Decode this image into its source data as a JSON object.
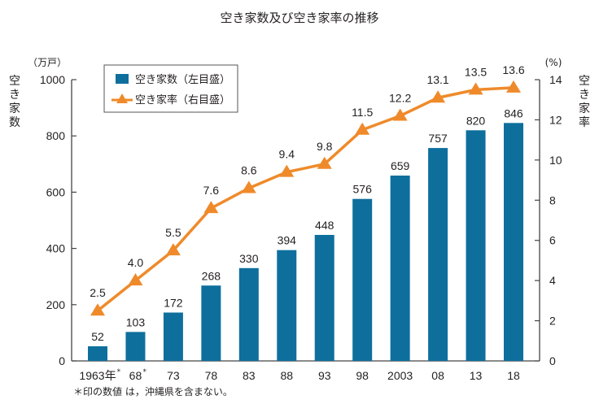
{
  "chart_data": {
    "type": "bar+line",
    "title": "空き家数及び空き家率の推移",
    "categories": [
      "1963年",
      "68",
      "73",
      "78",
      "83",
      "88",
      "93",
      "98",
      "2003",
      "08",
      "13",
      "18"
    ],
    "category_marks": [
      "*",
      "*",
      "",
      "",
      "",
      "",
      "",
      "",
      "",
      "",
      "",
      ""
    ],
    "series": [
      {
        "name": "空き家数（左目盛）",
        "type": "bar",
        "axis": "left",
        "color": "#0e6f9d",
        "values": [
          52,
          103,
          172,
          268,
          330,
          394,
          448,
          576,
          659,
          757,
          820,
          846
        ]
      },
      {
        "name": "空き家率（右目盛）",
        "type": "line",
        "axis": "right",
        "color": "#ef8a2a",
        "marker": "triangle",
        "values": [
          2.5,
          4.0,
          5.5,
          7.6,
          8.6,
          9.4,
          9.8,
          11.5,
          12.2,
          13.1,
          13.5,
          13.6
        ],
        "labels": [
          "2.5",
          "4.0",
          "5.5",
          "7.6",
          "8.6",
          "9.4",
          "9.8",
          "11.5",
          "12.2",
          "13.1",
          "13.5",
          "13.6"
        ]
      }
    ],
    "left_axis": {
      "label": "空き家数",
      "unit": "（万戸）",
      "ylim": [
        0,
        1000
      ],
      "ticks": [
        0,
        200,
        400,
        600,
        800,
        1000
      ]
    },
    "right_axis": {
      "label": "空き家率",
      "unit": "(%)",
      "ylim": [
        0,
        14
      ],
      "ticks": [
        0,
        2,
        4,
        6,
        8,
        10,
        12,
        14
      ]
    },
    "legend": {
      "placement": "top-left",
      "entries": [
        "空き家数（左目盛）",
        "空き家率（右目盛）"
      ]
    },
    "grid": false,
    "footnote": "＊印の数値 は，沖縄県を含まない。"
  }
}
